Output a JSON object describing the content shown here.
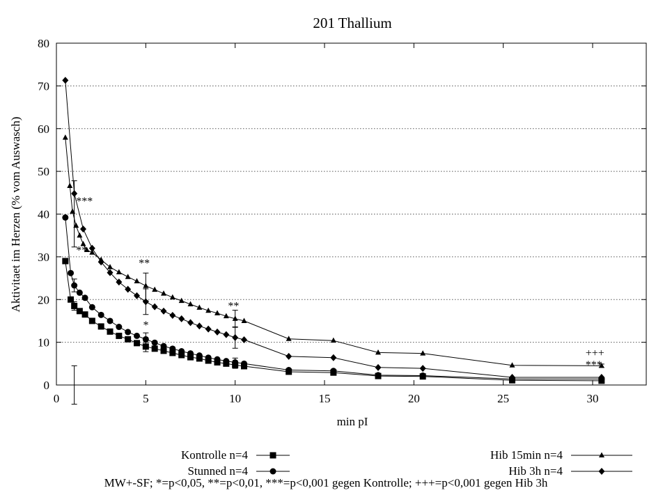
{
  "chart_data": {
    "type": "line",
    "title": "201 Thallium",
    "xlabel": "min pI",
    "ylabel": "Aktivitaet im Herzen (% vom Auswasch)",
    "xlim": [
      0,
      33
    ],
    "ylim": [
      0,
      80
    ],
    "xticks": [
      0,
      5,
      10,
      15,
      20,
      25,
      30
    ],
    "yticks": [
      0,
      10,
      20,
      30,
      40,
      50,
      60,
      70,
      80
    ],
    "grid": "horizontal dotted",
    "legend_position": "bottom",
    "footnote": "MW+-SF; *=p<0,05, **=p<0,01, ***=p<0,001 gegen Kontrolle; +++=p<0,001 gegen Hib 3h",
    "series": [
      {
        "name": "Kontrolle n=4",
        "marker": "square",
        "x": [
          0.5,
          0.8,
          1.0,
          1.3,
          1.6,
          2.0,
          2.5,
          3.0,
          3.5,
          4.0,
          4.5,
          5.0,
          5.5,
          6.0,
          6.5,
          7.0,
          7.5,
          8.0,
          8.5,
          9.0,
          9.5,
          10.0,
          10.5,
          13.0,
          15.5,
          18.0,
          20.5,
          25.5,
          30.5
        ],
        "y": [
          29.0,
          20.0,
          18.5,
          17.3,
          16.5,
          15.0,
          13.7,
          12.5,
          11.5,
          10.7,
          9.8,
          9.0,
          8.5,
          8.0,
          7.5,
          7.0,
          6.5,
          6.2,
          5.7,
          5.3,
          5.0,
          4.7,
          4.4,
          3.1,
          2.9,
          2.1,
          2.0,
          1.1,
          1.0
        ],
        "error_bars": [
          {
            "x": 1.0,
            "plus": 1.0,
            "minus": 1.0
          },
          {
            "x": 5.0,
            "plus": 1.0,
            "minus": 1.2
          },
          {
            "x": 10.0,
            "plus": 0.8,
            "minus": 0.8
          },
          {
            "x": 30.5,
            "plus": 0.3,
            "minus": 0.3
          }
        ]
      },
      {
        "name": "Stunned n=4",
        "marker": "circle",
        "x": [
          0.5,
          0.8,
          1.0,
          1.3,
          1.6,
          2.0,
          2.5,
          3.0,
          3.5,
          4.0,
          4.5,
          5.0,
          5.5,
          6.0,
          6.5,
          7.0,
          7.5,
          8.0,
          8.5,
          9.0,
          9.5,
          10.0,
          10.5,
          13.0,
          15.5,
          18.0,
          20.5,
          25.5,
          30.5
        ],
        "y": [
          39.2,
          26.2,
          23.3,
          21.6,
          20.4,
          18.2,
          16.4,
          15.0,
          13.6,
          12.4,
          11.5,
          10.7,
          9.9,
          9.1,
          8.5,
          7.9,
          7.4,
          6.9,
          6.4,
          6.0,
          5.6,
          5.3,
          5.0,
          3.5,
          3.3,
          2.3,
          2.2,
          1.4,
          1.4
        ],
        "error_bars": [
          {
            "x": 1.0,
            "plus": 1.5,
            "minus": 1.5
          },
          {
            "x": 5.0,
            "plus": 1.5,
            "minus": 1.5
          },
          {
            "x": 10.0,
            "plus": 1.0,
            "minus": 1.0
          }
        ]
      },
      {
        "name": "Hib 15min n=4",
        "marker": "triangle",
        "x": [
          0.5,
          0.75,
          0.9,
          1.1,
          1.3,
          1.5,
          1.7,
          2.0,
          2.5,
          3.0,
          3.5,
          4.0,
          4.5,
          5.0,
          5.5,
          6.0,
          6.5,
          7.0,
          7.5,
          8.0,
          8.5,
          9.0,
          9.5,
          10.0,
          10.5,
          13.0,
          15.5,
          18.0,
          20.5,
          25.5,
          30.5
        ],
        "y": [
          57.9,
          46.6,
          40.6,
          37.3,
          35.0,
          33.0,
          31.6,
          31.0,
          29.3,
          27.6,
          26.4,
          25.3,
          24.3,
          23.2,
          22.3,
          21.4,
          20.5,
          19.7,
          18.9,
          18.1,
          17.4,
          16.8,
          16.1,
          15.5,
          15.0,
          10.8,
          10.4,
          7.6,
          7.4,
          4.6,
          4.5
        ],
        "error_bars": [
          {
            "x": 1.0,
            "plus": 4.5,
            "minus": 4.5
          },
          {
            "x": 5.0,
            "plus": 3.0,
            "minus": 3.5
          },
          {
            "x": 10.0,
            "plus": 2.0,
            "minus": 2.0
          },
          {
            "x": 30.5,
            "plus": 0.4,
            "minus": 0.4
          }
        ]
      },
      {
        "name": "Hib 3h n=4",
        "marker": "diamond",
        "x": [
          0.5,
          1.0,
          1.5,
          2.0,
          2.5,
          3.0,
          3.5,
          4.0,
          4.5,
          5.0,
          5.5,
          6.0,
          6.5,
          7.0,
          7.5,
          8.0,
          8.5,
          9.0,
          9.5,
          10.0,
          10.5,
          13.0,
          15.5,
          18.0,
          20.5,
          25.5,
          30.5
        ],
        "y": [
          71.3,
          44.8,
          36.5,
          32.0,
          28.8,
          26.3,
          24.1,
          22.4,
          20.9,
          19.5,
          18.3,
          17.3,
          16.3,
          15.5,
          14.6,
          13.8,
          13.1,
          12.4,
          11.8,
          11.1,
          10.6,
          6.7,
          6.4,
          4.1,
          3.9,
          1.8,
          1.8
        ],
        "error_bars": [
          {
            "x": 1.0,
            "plus": 3.0,
            "minus": 12.5
          },
          {
            "x": 5.0,
            "plus": 3.0,
            "minus": 3.0
          },
          {
            "x": 10.0,
            "plus": 2.5,
            "minus": 2.5
          }
        ]
      }
    ],
    "annotations": [
      {
        "text": "***",
        "x": 1.1,
        "y": 43.5
      },
      {
        "text": "**",
        "x": 1.1,
        "y": 32.0
      },
      {
        "text": "**",
        "x": 4.6,
        "y": 29.0
      },
      {
        "text": "*",
        "x": 4.85,
        "y": 14.5
      },
      {
        "text": "**",
        "x": 9.6,
        "y": 19.0
      },
      {
        "text": "+++",
        "x": 29.6,
        "y": 8.0
      },
      {
        "text": "***",
        "x": 29.6,
        "y": 5.2
      }
    ]
  }
}
